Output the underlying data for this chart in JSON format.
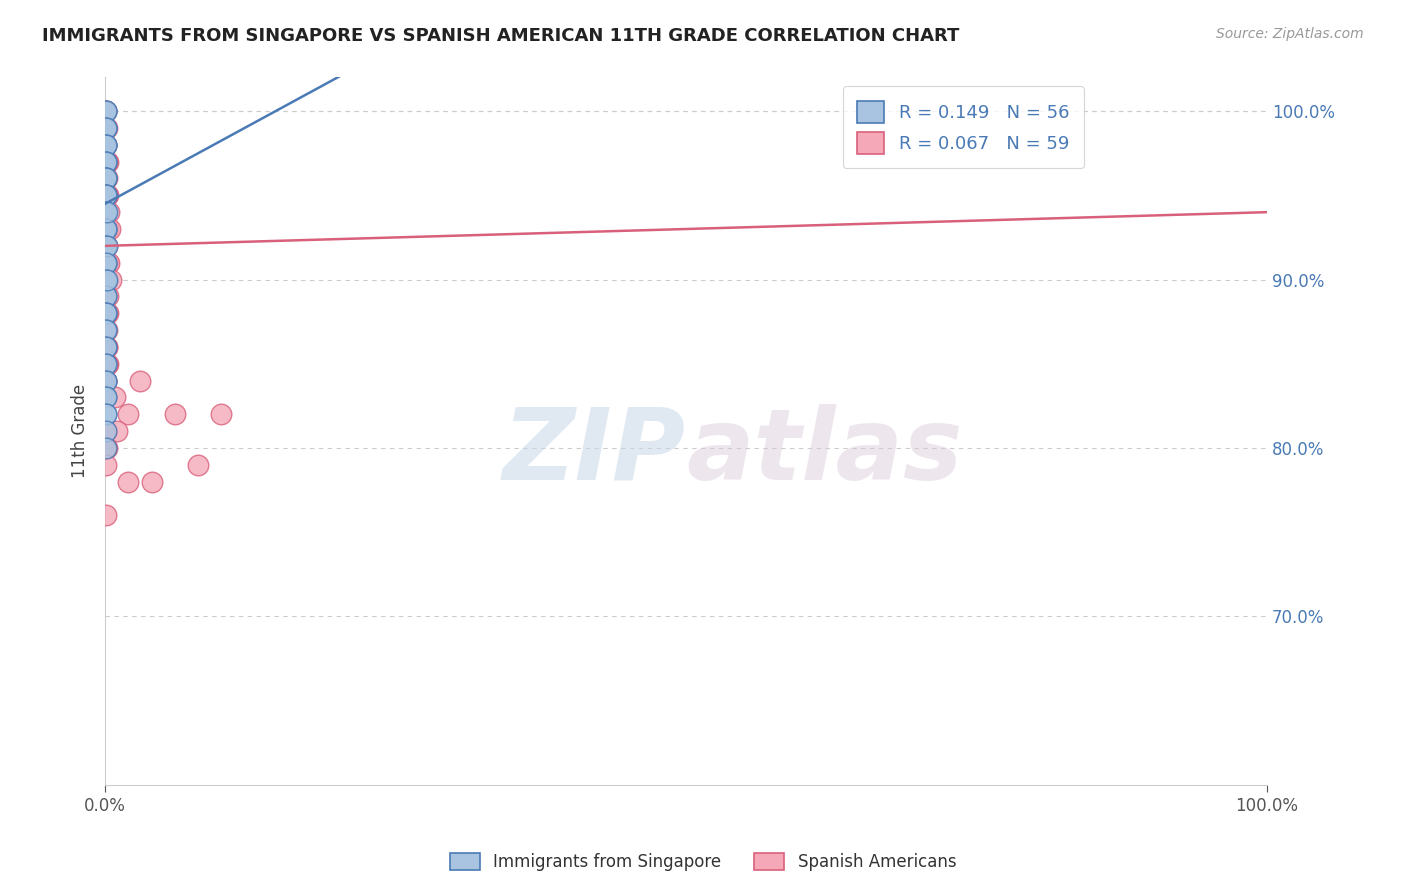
{
  "title": "IMMIGRANTS FROM SINGAPORE VS SPANISH AMERICAN 11TH GRADE CORRELATION CHART",
  "source": "Source: ZipAtlas.com",
  "xlabel": "",
  "ylabel": "11th Grade",
  "xlim": [
    0.0,
    1.0
  ],
  "ylim": [
    0.6,
    1.02
  ],
  "x_tick_labels": [
    "0.0%",
    "100.0%"
  ],
  "y_tick_positions": [
    0.7,
    0.8,
    0.9,
    1.0
  ],
  "legend_label1": "Immigrants from Singapore",
  "legend_label2": "Spanish Americans",
  "R1": 0.149,
  "N1": 56,
  "R2": 0.067,
  "N2": 59,
  "color1": "#a8c4e0",
  "color2": "#f4a8b8",
  "line_color1": "#4a7ab5",
  "line_color2": "#d9607a",
  "watermark_zip": "ZIP",
  "watermark_atlas": "atlas",
  "bg_color": "#ffffff",
  "title_color": "#222222",
  "grid_color": "#cccccc",
  "blue_line_x0": 0.0,
  "blue_line_y0": 0.945,
  "blue_line_x1": 0.08,
  "blue_line_y1": 0.975,
  "pink_line_x0": 0.0,
  "pink_line_y0": 0.92,
  "pink_line_x1": 1.0,
  "pink_line_y1": 0.94,
  "blue_scatter_x": [
    0.0006,
    0.0008,
    0.001,
    0.0005,
    0.0007,
    0.0009,
    0.0006,
    0.0008,
    0.0005,
    0.0007,
    0.0006,
    0.0009,
    0.0007,
    0.0005,
    0.0008,
    0.001,
    0.0006,
    0.0007,
    0.0009,
    0.0005,
    0.0006,
    0.0008,
    0.0007,
    0.0005,
    0.0009,
    0.0006,
    0.0008,
    0.0007,
    0.001,
    0.0005,
    0.0006,
    0.0008,
    0.0007,
    0.0012,
    0.0015,
    0.0009,
    0.0011,
    0.0006,
    0.0008,
    0.0018,
    0.0005,
    0.0007,
    0.0009,
    0.0006,
    0.0008,
    0.0005,
    0.001,
    0.0007,
    0.0006,
    0.0005,
    0.0009,
    0.0007,
    0.0011,
    0.0008,
    0.0006,
    0.0005
  ],
  "blue_scatter_y": [
    1.0,
    1.0,
    1.0,
    0.99,
    0.99,
    0.99,
    0.98,
    0.98,
    0.98,
    0.97,
    0.97,
    0.97,
    0.96,
    0.96,
    0.96,
    0.96,
    0.95,
    0.95,
    0.95,
    0.95,
    0.94,
    0.94,
    0.94,
    0.93,
    0.93,
    0.93,
    0.92,
    0.92,
    0.91,
    0.91,
    0.9,
    0.9,
    0.89,
    0.94,
    0.92,
    0.91,
    0.9,
    0.89,
    0.88,
    0.9,
    0.88,
    0.88,
    0.87,
    0.87,
    0.86,
    0.86,
    0.85,
    0.85,
    0.84,
    0.84,
    0.83,
    0.83,
    0.82,
    0.82,
    0.81,
    0.8
  ],
  "pink_scatter_x": [
    0.0005,
    0.001,
    0.0007,
    0.0015,
    0.0008,
    0.0006,
    0.002,
    0.0012,
    0.0016,
    0.0008,
    0.0014,
    0.0006,
    0.0025,
    0.0012,
    0.0018,
    0.0008,
    0.003,
    0.002,
    0.0014,
    0.004,
    0.001,
    0.0016,
    0.0028,
    0.0012,
    0.0035,
    0.0014,
    0.005,
    0.002,
    0.0008,
    0.0025,
    0.0014,
    0.0008,
    0.0018,
    0.0012,
    0.0006,
    0.0016,
    0.0022,
    0.0008,
    0.0014,
    0.0012,
    0.0006,
    0.001,
    0.0008,
    0.0005,
    0.03,
    0.008,
    0.06,
    0.02,
    0.01,
    0.0014,
    0.0005,
    0.0008,
    0.0006,
    0.0004,
    0.08,
    0.02,
    0.04,
    0.001,
    0.1
  ],
  "pink_scatter_y": [
    1.0,
    1.0,
    0.99,
    0.99,
    0.98,
    0.98,
    0.97,
    0.97,
    0.97,
    0.96,
    0.96,
    0.96,
    0.95,
    0.95,
    0.95,
    0.94,
    0.94,
    0.93,
    0.93,
    0.93,
    0.92,
    0.92,
    0.91,
    0.91,
    0.91,
    0.9,
    0.9,
    0.89,
    0.89,
    0.88,
    0.88,
    0.88,
    0.87,
    0.86,
    0.86,
    0.86,
    0.85,
    0.85,
    0.85,
    0.85,
    0.84,
    0.84,
    0.83,
    0.84,
    0.84,
    0.83,
    0.82,
    0.82,
    0.81,
    0.8,
    0.8,
    0.81,
    0.8,
    0.79,
    0.79,
    0.78,
    0.78,
    0.76,
    0.82
  ]
}
